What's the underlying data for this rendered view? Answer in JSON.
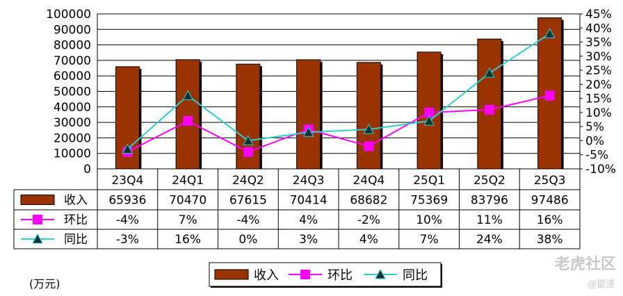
{
  "chart_data": {
    "type": "bar",
    "categories": [
      "23Q4",
      "24Q1",
      "24Q2",
      "24Q3",
      "24Q4",
      "25Q1",
      "25Q2",
      "25Q3"
    ],
    "series": [
      {
        "name": "收入",
        "type": "bar",
        "axis": "left",
        "color": "#993300",
        "values": [
          65936,
          70470,
          67615,
          70414,
          68682,
          75369,
          83796,
          97486
        ]
      },
      {
        "name": "环比",
        "type": "line",
        "axis": "right",
        "color": "#ff00ff",
        "marker": "square",
        "values": [
          -4,
          7,
          -4,
          4,
          -2,
          10,
          11,
          16
        ]
      },
      {
        "name": "同比",
        "type": "line",
        "axis": "right",
        "color": "#33cccc",
        "marker": "triangle",
        "values": [
          -3,
          16,
          0,
          3,
          4,
          7,
          24,
          38
        ]
      }
    ],
    "table_rows": [
      [
        "65936",
        "70470",
        "67615",
        "70414",
        "68682",
        "75369",
        "83796",
        "97486"
      ],
      [
        "-4%",
        "7%",
        "-4%",
        "4%",
        "-2%",
        "10%",
        "11%",
        "16%"
      ],
      [
        "-3%",
        "16%",
        "0%",
        "3%",
        "4%",
        "7%",
        "24%",
        "38%"
      ]
    ],
    "left_axis": {
      "ylim": [
        0,
        100000
      ],
      "ticks": [
        "0",
        "10000",
        "20000",
        "30000",
        "40000",
        "50000",
        "60000",
        "70000",
        "80000",
        "90000",
        "100000"
      ]
    },
    "right_axis": {
      "ylim": [
        -10,
        45
      ],
      "ticks": [
        "-10%",
        "-5%",
        "0%",
        "5%",
        "10%",
        "15%",
        "20%",
        "25%",
        "30%",
        "35%",
        "40%",
        "45%"
      ]
    },
    "unit_label": "(万元)",
    "legend_position": "bottom",
    "grid": true
  },
  "watermark": {
    "main": "老虎社区",
    "sub": "@雷递"
  }
}
